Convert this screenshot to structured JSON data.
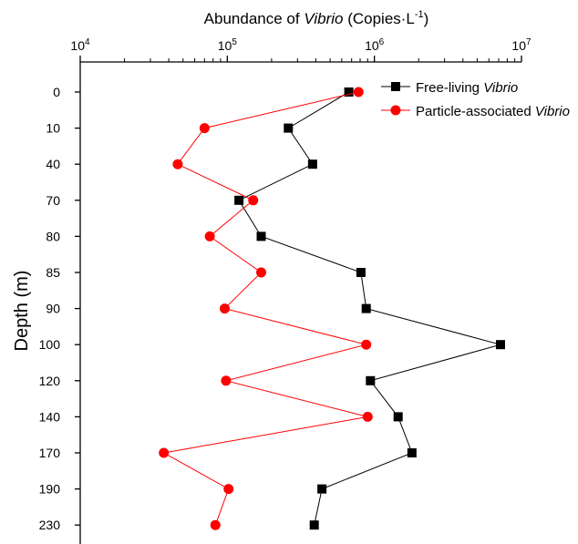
{
  "chart_data": {
    "type": "line",
    "title": "",
    "xlabel": {
      "prefix": "Abundance of ",
      "italic": "Vibrio",
      "suffix": "  (Copies·L",
      "sup": "-1",
      "close": ")"
    },
    "ylabel": "Depth (m)",
    "x_scale": "log",
    "xlim": [
      10000,
      10000000
    ],
    "x_ticks": [
      {
        "value": 10000,
        "base": "10",
        "exp": "4"
      },
      {
        "value": 100000,
        "base": "10",
        "exp": "5"
      },
      {
        "value": 1000000,
        "base": "10",
        "exp": "6"
      },
      {
        "value": 10000000,
        "base": "10",
        "exp": "7"
      }
    ],
    "categories": [
      "0",
      "10",
      "40",
      "70",
      "80",
      "85",
      "90",
      "100",
      "120",
      "140",
      "170",
      "190",
      "230"
    ],
    "legend_position": "top-right",
    "series": [
      {
        "name_plain": "Free-living ",
        "name_italic": "Vibrio",
        "color": "#000000",
        "marker": "square",
        "values": [
          670000,
          260000,
          380000,
          120000,
          170000,
          810000,
          880000,
          7200000,
          940000,
          1450000,
          1800000,
          440000,
          390000
        ]
      },
      {
        "name_plain": "Particle-associated ",
        "name_italic": "Vibrio",
        "color": "#ff0000",
        "marker": "circle",
        "values": [
          780000,
          70000,
          46000,
          150000,
          76000,
          170000,
          96000,
          880000,
          98000,
          900000,
          37000,
          102000,
          83000
        ]
      }
    ]
  }
}
